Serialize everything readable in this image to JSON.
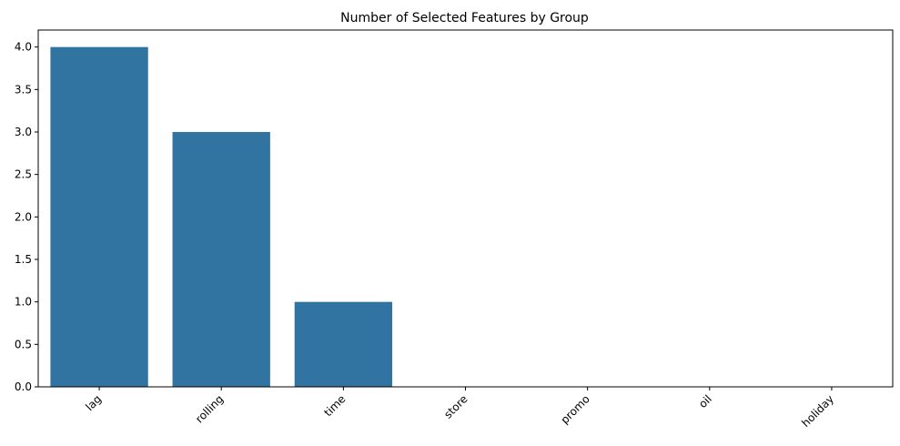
{
  "chart_data": {
    "type": "bar",
    "title": "Number of Selected Features by Group",
    "xlabel": "",
    "ylabel": "",
    "categories": [
      "lag",
      "rolling",
      "time",
      "store",
      "promo",
      "oil",
      "holiday"
    ],
    "values": [
      4,
      3,
      1,
      0,
      0,
      0,
      0
    ],
    "ylim": [
      0,
      4.2
    ],
    "yticks": [
      0.0,
      0.5,
      1.0,
      1.5,
      2.0,
      2.5,
      3.0,
      3.5,
      4.0
    ],
    "ytick_labels": [
      "0.0",
      "0.5",
      "1.0",
      "1.5",
      "2.0",
      "2.5",
      "3.0",
      "3.5",
      "4.0"
    ],
    "xtick_rotation": 45,
    "grid": false,
    "legend": "none",
    "bar_color": "#3274a1"
  }
}
